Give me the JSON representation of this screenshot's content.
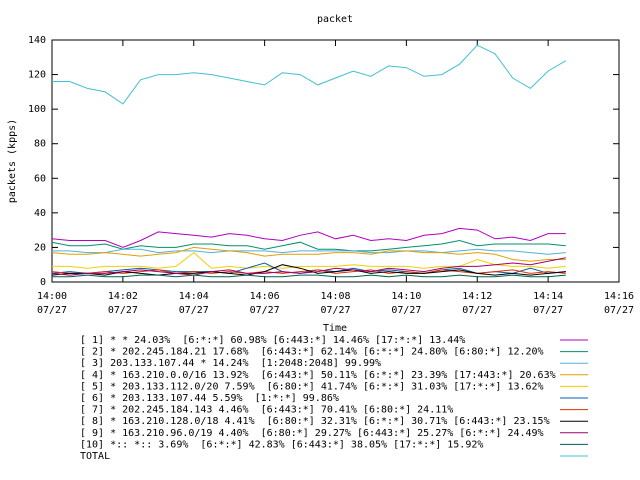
{
  "chart_data": {
    "type": "line",
    "title": "packet",
    "xlabel": "Time",
    "ylabel": "packets (kpps)",
    "x": [
      0,
      0.5,
      1,
      1.5,
      2,
      2.5,
      3,
      3.5,
      4,
      4.5,
      5,
      5.5,
      6,
      6.5,
      7,
      7.5,
      8,
      8.5,
      9,
      9.5,
      10,
      10.5,
      11,
      11.5,
      12,
      12.5,
      13,
      13.5,
      14,
      14.5
    ],
    "xlim": [
      0,
      16
    ],
    "xticks": [
      {
        "value": 0,
        "label": "14:00\n07/27"
      },
      {
        "value": 2,
        "label": "14:02\n07/27"
      },
      {
        "value": 4,
        "label": "14:04\n07/27"
      },
      {
        "value": 6,
        "label": "14:06\n07/27"
      },
      {
        "value": 8,
        "label": "14:08\n07/27"
      },
      {
        "value": 10,
        "label": "14:10\n07/27"
      },
      {
        "value": 12,
        "label": "14:12\n07/27"
      },
      {
        "value": 14,
        "label": "14:14\n07/27"
      },
      {
        "value": 16,
        "label": "14:16\n07/27"
      }
    ],
    "ylim": [
      0,
      140
    ],
    "yticks": [
      0,
      20,
      40,
      60,
      80,
      100,
      120,
      140
    ],
    "grid": false,
    "series": [
      {
        "name": "[ 1] * * 24.03%  [6:*:*] 60.98% [6:443:*] 14.46% [17:*:*] 13.44%",
        "color": "#b000c0",
        "values": [
          25,
          24,
          24,
          24,
          20,
          24,
          29,
          28,
          27,
          26,
          28,
          27,
          25,
          24,
          27,
          29,
          25,
          27,
          24,
          25,
          24,
          27,
          28,
          31,
          30,
          25,
          26,
          24,
          28,
          28
        ]
      },
      {
        "name": "[ 2] * 202.245.184.21 17.68%  [6:443:*] 62.14% [6:*:*] 24.80% [6:80:*] 12.20%",
        "color": "#009070",
        "values": [
          23,
          21,
          21,
          22,
          19,
          21,
          20,
          20,
          22,
          22,
          21,
          21,
          19,
          21,
          23,
          19,
          19,
          18,
          18,
          19,
          20,
          21,
          22,
          24,
          21,
          22,
          22,
          22,
          22,
          21
        ]
      },
      {
        "name": "[ 3] 203.133.107.44 * 14.24%  [1:2048:2048] 99.99%",
        "color": "#50b0e0",
        "values": [
          18,
          18,
          17,
          17,
          19,
          19,
          17,
          18,
          18,
          17,
          18,
          18,
          18,
          17,
          18,
          18,
          18,
          18,
          17,
          17,
          18,
          18,
          17,
          18,
          19,
          18,
          18,
          17,
          16,
          17
        ]
      },
      {
        "name": "[ 4] * 163.210.0.0/16 13.92%  [6:443:*] 50.11% [6:*:*] 23.39% [17:443:*] 20.63%",
        "color": "#e0a000",
        "values": [
          17,
          16,
          16,
          17,
          16,
          15,
          16,
          17,
          20,
          19,
          18,
          17,
          15,
          16,
          16,
          16,
          17,
          17,
          16,
          18,
          18,
          17,
          17,
          16,
          17,
          16,
          13,
          12,
          13,
          13
        ]
      },
      {
        "name": "[ 5] * 203.133.112.0/20 7.59%  [6:80:*] 41.74% [6:*:*] 31.03% [17:*:*] 13.62%",
        "color": "#f0d000",
        "values": [
          9,
          9,
          8,
          9,
          9,
          9,
          8,
          9,
          17,
          8,
          9,
          8,
          9,
          8,
          9,
          9,
          9,
          10,
          9,
          9,
          9,
          8,
          9,
          9,
          13,
          10,
          9,
          9,
          8,
          9
        ]
      },
      {
        "name": "[ 6] * 203.133.107.44 5.59%  [1:*:*] 99.86%",
        "color": "#0060b0",
        "values": [
          5,
          6,
          5,
          6,
          7,
          8,
          7,
          6,
          6,
          6,
          5,
          8,
          11,
          6,
          5,
          7,
          6,
          8,
          6,
          7,
          6,
          5,
          7,
          8,
          5,
          6,
          5,
          8,
          5,
          6
        ]
      },
      {
        "name": "[ 7] * 202.245.184.143 4.46%  [6:443:*] 70.41% [6:80:*] 24.11%",
        "color": "#e03000",
        "values": [
          6,
          5,
          5,
          6,
          5,
          6,
          7,
          5,
          6,
          5,
          6,
          5,
          6,
          5,
          6,
          7,
          5,
          6,
          7,
          5,
          6,
          5,
          7,
          6,
          5,
          6,
          7,
          5,
          6,
          5
        ]
      },
      {
        "name": "[ 8] * 163.210.128.0/18 4.41%  [6:80:*] 32.31% [6:*:*] 30.71% [6:443:*] 23.15%",
        "color": "#000000",
        "values": [
          4,
          5,
          5,
          4,
          6,
          5,
          4,
          5,
          5,
          6,
          5,
          4,
          6,
          10,
          8,
          5,
          6,
          7,
          5,
          6,
          5,
          5,
          6,
          7,
          5,
          4,
          5,
          4,
          5,
          6
        ]
      },
      {
        "name": "[ 9] * 163.210.96.0/19 4.40%  [6:80:*] 29.27% [6:443:*] 25.27% [6:*:*] 24.49%",
        "color": "#a00070",
        "values": [
          5,
          4,
          5,
          5,
          6,
          7,
          6,
          5,
          4,
          6,
          7,
          5,
          5,
          6,
          5,
          6,
          8,
          7,
          6,
          8,
          7,
          6,
          8,
          9,
          9,
          10,
          11,
          10,
          12,
          14
        ]
      },
      {
        "name": "[10] *:: *:: 3.69%  [6:*:*] 42.83% [6:443:*] 38.05% [17:*:*] 15.92%",
        "color": "#006050",
        "values": [
          3,
          3,
          4,
          3,
          3,
          4,
          4,
          3,
          4,
          3,
          3,
          4,
          3,
          3,
          4,
          4,
          3,
          3,
          4,
          3,
          4,
          3,
          3,
          4,
          3,
          3,
          4,
          3,
          3,
          4
        ]
      },
      {
        "name": "TOTAL",
        "color": "#40c0d0",
        "values": [
          116,
          116,
          112,
          110,
          103,
          117,
          120,
          120,
          121,
          120,
          118,
          116,
          114,
          121,
          120,
          114,
          118,
          122,
          119,
          125,
          124,
          119,
          120,
          126,
          137,
          132,
          118,
          112,
          122,
          128
        ]
      }
    ]
  }
}
